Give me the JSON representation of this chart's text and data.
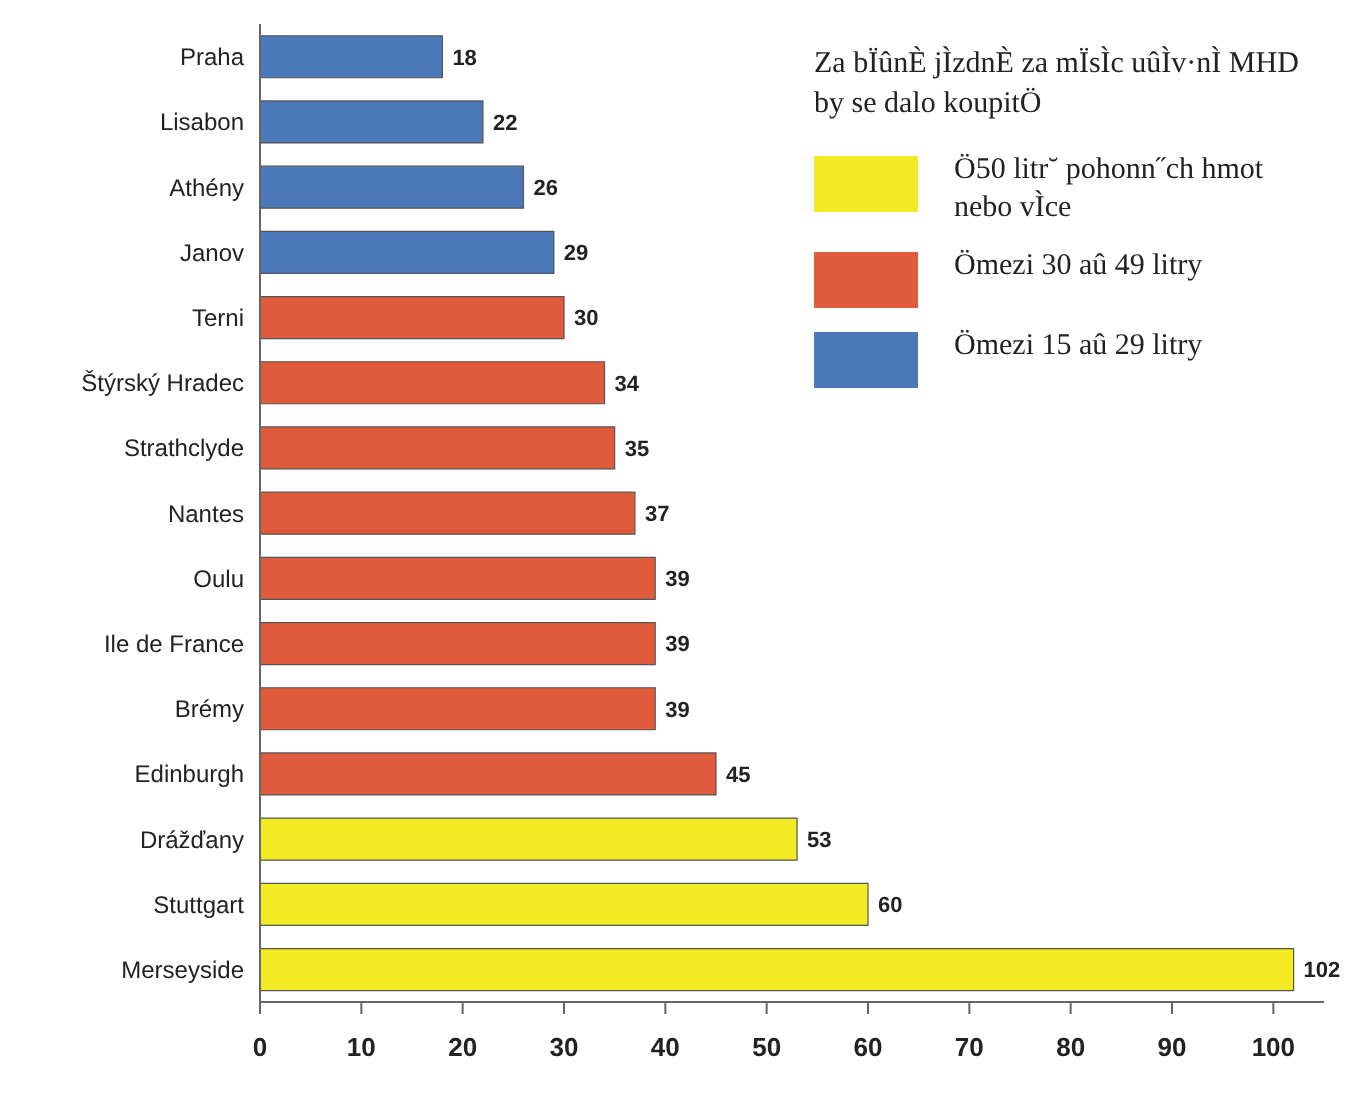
{
  "chart_data": {
    "type": "bar",
    "orientation": "horizontal",
    "stacked": true,
    "legend_title": "Za bÏûnÈ jÌzdnÈ za mÏsÌc uûÌv·nÌ MHD by se dalo koupitÖ",
    "legend": "top right",
    "data_labels": true,
    "grid": false,
    "categories": [
      "Praha",
      "Lisabon",
      "Athény",
      "Janov",
      "Terni",
      "Štýrský Hradec",
      "Strathclyde",
      "Nantes",
      "Oulu",
      "Ile de France",
      "Brémy",
      "Edinburgh",
      "Drážďany",
      "Stuttgart",
      "Merseyside"
    ],
    "series": [
      {
        "name": "Ö50 litr˘ pohonn˝ch hmot nebo vÌce",
        "color": "#f2ea22",
        "values": [
          null,
          null,
          null,
          null,
          null,
          null,
          null,
          null,
          null,
          null,
          null,
          null,
          53,
          60,
          102
        ]
      },
      {
        "name": "Ömezi 30 aû 49 litry",
        "color": "#e05a3c",
        "values": [
          null,
          null,
          null,
          null,
          30,
          34,
          35,
          37,
          39,
          39,
          39,
          45,
          null,
          null,
          null
        ]
      },
      {
        "name": "Ömezi 15 aû 29 litry",
        "color": "#4a78b8",
        "values": [
          18,
          22,
          26,
          29,
          null,
          null,
          null,
          null,
          null,
          null,
          null,
          null,
          null,
          null,
          null
        ]
      }
    ],
    "xlim": [
      0,
      105
    ],
    "xticks": [
      0,
      10,
      20,
      30,
      40,
      50,
      60,
      70,
      80,
      90,
      100
    ]
  }
}
